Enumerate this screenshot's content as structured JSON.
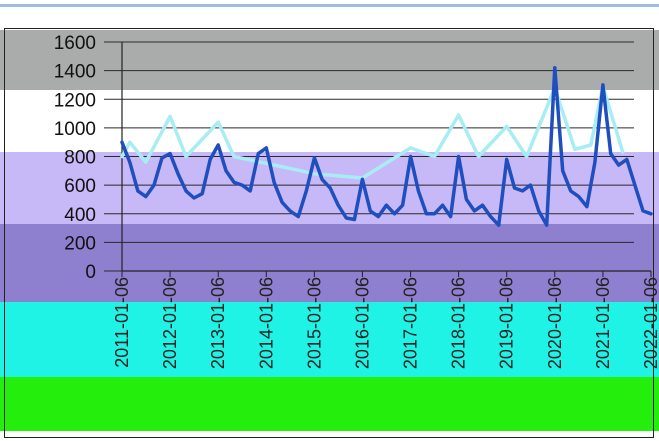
{
  "chart_data": {
    "type": "line",
    "title": "",
    "xlabel": "",
    "ylabel": "",
    "ylim": [
      0,
      1600
    ],
    "y_ticks": [
      0,
      200,
      400,
      600,
      800,
      1000,
      1200,
      1400,
      1600
    ],
    "x_range": [
      "2011-01-01",
      "2022-01-01"
    ],
    "x_ticks": [
      "2011-01-06",
      "2012-01-06",
      "2013-01-06",
      "2014-01-06",
      "2015-01-06",
      "2016-01-06",
      "2017-01-06",
      "2018-01-06",
      "2019-01-06",
      "2020-01-06",
      "2021-01-06",
      "2022-01-06"
    ],
    "grid": true,
    "series": [
      {
        "color": "#1f4fbf",
        "points": [
          [
            "2011-01-01",
            900
          ],
          [
            "2011-03-01",
            760
          ],
          [
            "2011-05-01",
            560
          ],
          [
            "2011-07-01",
            520
          ],
          [
            "2011-09-01",
            600
          ],
          [
            "2011-11-01",
            790
          ],
          [
            "2012-01-01",
            820
          ],
          [
            "2012-03-01",
            680
          ],
          [
            "2012-05-01",
            560
          ],
          [
            "2012-07-01",
            510
          ],
          [
            "2012-09-01",
            540
          ],
          [
            "2012-11-01",
            780
          ],
          [
            "2013-01-01",
            880
          ],
          [
            "2013-03-01",
            700
          ],
          [
            "2013-05-01",
            620
          ],
          [
            "2013-07-01",
            600
          ],
          [
            "2013-09-01",
            560
          ],
          [
            "2013-11-01",
            820
          ],
          [
            "2014-01-01",
            860
          ],
          [
            "2014-03-01",
            620
          ],
          [
            "2014-05-01",
            480
          ],
          [
            "2014-07-01",
            420
          ],
          [
            "2014-09-01",
            380
          ],
          [
            "2014-11-01",
            560
          ],
          [
            "2015-01-01",
            790
          ],
          [
            "2015-03-01",
            640
          ],
          [
            "2015-05-01",
            580
          ],
          [
            "2015-07-01",
            460
          ],
          [
            "2015-09-01",
            370
          ],
          [
            "2015-11-01",
            360
          ],
          [
            "2016-01-01",
            640
          ],
          [
            "2016-03-01",
            420
          ],
          [
            "2016-05-01",
            380
          ],
          [
            "2016-07-01",
            460
          ],
          [
            "2016-09-01",
            400
          ],
          [
            "2016-11-01",
            460
          ],
          [
            "2017-01-01",
            800
          ],
          [
            "2017-03-01",
            560
          ],
          [
            "2017-05-01",
            400
          ],
          [
            "2017-07-01",
            400
          ],
          [
            "2017-09-01",
            460
          ],
          [
            "2017-11-01",
            380
          ],
          [
            "2018-01-01",
            800
          ],
          [
            "2018-03-01",
            500
          ],
          [
            "2018-05-01",
            420
          ],
          [
            "2018-07-01",
            460
          ],
          [
            "2018-09-01",
            380
          ],
          [
            "2018-11-01",
            320
          ],
          [
            "2019-01-01",
            780
          ],
          [
            "2019-03-01",
            580
          ],
          [
            "2019-05-01",
            560
          ],
          [
            "2019-07-01",
            600
          ],
          [
            "2019-09-01",
            420
          ],
          [
            "2019-11-01",
            320
          ],
          [
            "2020-01-01",
            1420
          ],
          [
            "2020-03-01",
            700
          ],
          [
            "2020-05-01",
            560
          ],
          [
            "2020-07-01",
            520
          ],
          [
            "2020-09-01",
            450
          ],
          [
            "2020-11-01",
            760
          ],
          [
            "2021-01-01",
            1300
          ],
          [
            "2021-03-01",
            820
          ],
          [
            "2021-05-01",
            740
          ],
          [
            "2021-07-01",
            780
          ],
          [
            "2021-09-01",
            600
          ],
          [
            "2021-11-01",
            420
          ],
          [
            "2022-01-01",
            400
          ]
        ]
      },
      {
        "color": "#a8ecf4",
        "points": [
          [
            "2011-01-01",
            800
          ],
          [
            "2011-03-01",
            900
          ],
          [
            "2011-07-01",
            760
          ],
          [
            "2012-01-01",
            1080
          ],
          [
            "2012-05-01",
            800
          ],
          [
            "2013-01-01",
            1040
          ],
          [
            "2013-05-01",
            800
          ],
          [
            "2015-01-01",
            680
          ],
          [
            "2016-01-01",
            650
          ],
          [
            "2017-01-01",
            860
          ],
          [
            "2017-07-01",
            800
          ],
          [
            "2018-01-01",
            1090
          ],
          [
            "2018-06-01",
            800
          ],
          [
            "2019-01-01",
            1010
          ],
          [
            "2019-06-01",
            800
          ],
          [
            "2020-01-01",
            1280
          ],
          [
            "2020-06-01",
            850
          ],
          [
            "2020-10-01",
            880
          ],
          [
            "2021-01-01",
            1290
          ],
          [
            "2021-06-01",
            830
          ]
        ]
      }
    ]
  },
  "colors": {
    "band_gray": "#a9acab",
    "band_lavender": "#c7b9f7",
    "band_purple": "#8f80cf",
    "band_cyan": "#1ff3e6",
    "band_green": "#24ee0c"
  }
}
